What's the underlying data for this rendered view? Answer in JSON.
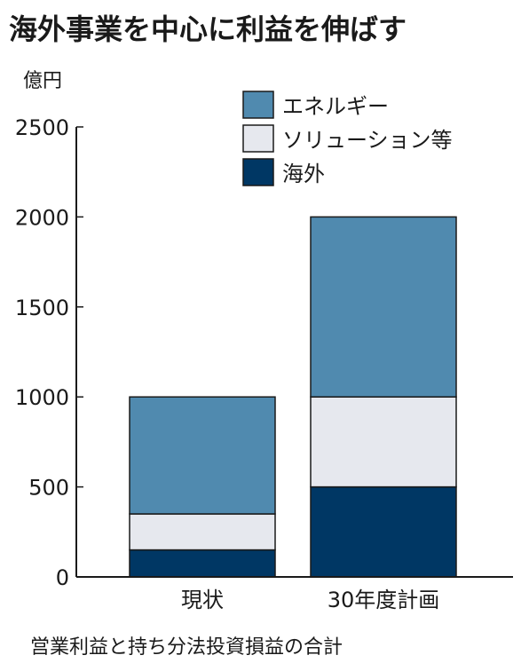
{
  "chart_data": {
    "type": "bar",
    "stacked": true,
    "title": "海外事業を中心に利益を伸ばす",
    "unit": "億円",
    "categories": [
      "現状",
      "30年度計画"
    ],
    "series": [
      {
        "name": "海外",
        "values": [
          150,
          500
        ],
        "color": "#003764"
      },
      {
        "name": "ソリューション等",
        "values": [
          200,
          500
        ],
        "color": "#e6e8ee"
      },
      {
        "name": "エネルギー",
        "values": [
          650,
          1000
        ],
        "color": "#508aaf"
      }
    ],
    "legend_order": [
      "エネルギー",
      "ソリューション等",
      "海外"
    ],
    "ylim": [
      0,
      2500
    ],
    "yticks": [
      0,
      500,
      1000,
      1500,
      2000,
      2500
    ],
    "grid": false,
    "legend_position": "top-right",
    "note": "営業利益と持ち分法投資損益の合計"
  }
}
